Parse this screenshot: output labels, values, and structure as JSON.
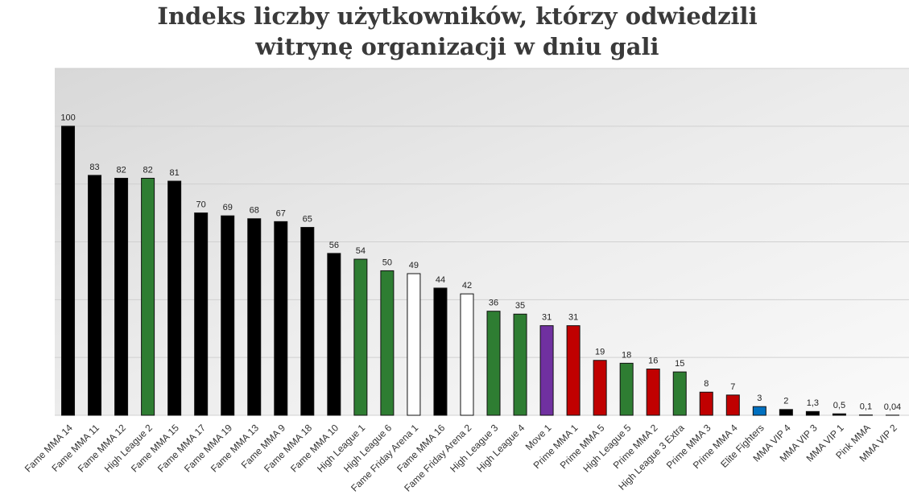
{
  "chart_data": {
    "type": "bar",
    "title": "Indeks liczby użytkowników, którzy odwiedzili",
    "subtitle": "witrynę organizacji w dniu gali",
    "categories": [
      "Fame MMA 14",
      "Fame MMA 11",
      "Fame MMA 12",
      "High League 2",
      "Fame MMA 15",
      "Fame MMA 17",
      "Fame MMA 19",
      "Fame MMA 13",
      "Fame MMA 9",
      "Fame MMA 18",
      "Fame MMA 10",
      "High League 1",
      "High League 6",
      "Fame Friday Arena 1",
      "Fame MMA 16",
      "Fame Friday Arena 2",
      "High League 3",
      "High League 4",
      "Move 1",
      "Prime MMA 1",
      "Prime MMA 5",
      "High League 5",
      "Prime MMA 2",
      "High League 3 Extra",
      "Prime MMA 3",
      "Prime MMA 4",
      "Elite Fighters",
      "MMA VIP 4",
      "MMA VIP 3",
      "MMA VIP 1",
      "Pink MMA",
      "MMA VIP 2"
    ],
    "values": [
      100,
      83,
      82,
      82,
      81,
      70,
      69,
      68,
      67,
      65,
      56,
      54,
      50,
      49,
      44,
      42,
      36,
      35,
      31,
      31,
      19,
      18,
      16,
      15,
      8,
      7,
      3,
      2,
      1.3,
      0.5,
      0.1,
      0.04
    ],
    "value_labels": [
      "100",
      "83",
      "82",
      "82",
      "81",
      "70",
      "69",
      "68",
      "67",
      "65",
      "56",
      "54",
      "50",
      "49",
      "44",
      "42",
      "36",
      "35",
      "31",
      "31",
      "19",
      "18",
      "16",
      "15",
      "8",
      "7",
      "3",
      "2",
      "1,3",
      "0,5",
      "0,1",
      "0,04"
    ],
    "colors": [
      "#000000",
      "#000000",
      "#000000",
      "#2e7d32",
      "#000000",
      "#000000",
      "#000000",
      "#000000",
      "#000000",
      "#000000",
      "#000000",
      "#2e7d32",
      "#2e7d32",
      "#ffffff",
      "#000000",
      "#ffffff",
      "#2e7d32",
      "#2e7d32",
      "#7030a0",
      "#c00000",
      "#c00000",
      "#2e7d32",
      "#c00000",
      "#2e7d32",
      "#c00000",
      "#c00000",
      "#0070c0",
      "#000000",
      "#000000",
      "#000000",
      "#e86aa8",
      "#000000"
    ],
    "ylim": [
      0,
      120
    ],
    "yticks": [
      0,
      20,
      40,
      60,
      80,
      100,
      120
    ],
    "grid": true
  }
}
